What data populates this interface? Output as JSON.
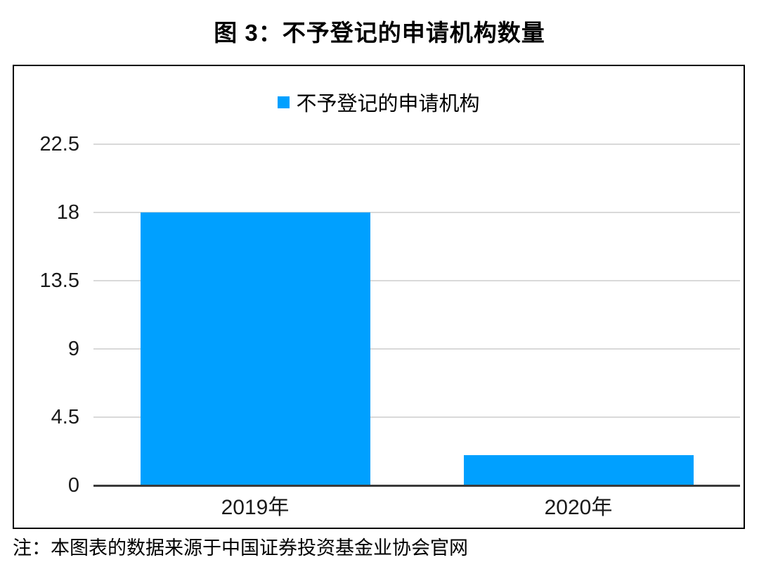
{
  "title": "图 3：不予登记的申请机构数量",
  "note": "注：本图表的数据来源于中国证券投资基金业协会官网",
  "legend": {
    "label": "不予登记的申请机构",
    "marker_color": "#00A0FF"
  },
  "colors": {
    "bar": "#00A0FF",
    "gridline": "#D9D9D9",
    "axis_line": "#3A3A3A",
    "box_border": "#000000",
    "text": "#000000"
  },
  "chart_data": {
    "type": "bar",
    "title": "图 3：不予登记的申请机构数量",
    "categories": [
      "2019年",
      "2020年"
    ],
    "values": [
      18,
      2
    ],
    "series_name": "不予登记的申请机构",
    "yticks": [
      0,
      4.5,
      9,
      13.5,
      18,
      22.5
    ],
    "ylim": [
      0,
      22.5
    ],
    "xlabel": "",
    "ylabel": "",
    "grid": true,
    "legend_position": "top-center"
  }
}
